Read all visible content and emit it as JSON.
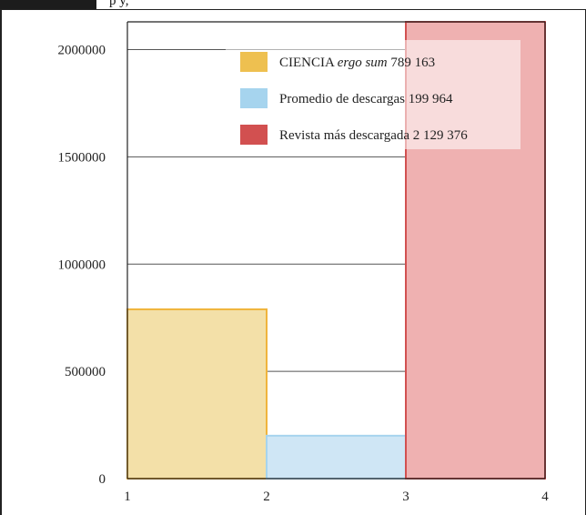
{
  "header": {
    "caption_fragment": "p                                                            y,"
  },
  "chart_data": {
    "type": "bar",
    "title": "",
    "xlabel": "",
    "ylabel": "",
    "x_ticks": [
      "1",
      "2",
      "3",
      "4"
    ],
    "y_ticks": [
      "0",
      "500000",
      "1000000",
      "1500000",
      "2000000"
    ],
    "ylim": [
      0,
      2129376
    ],
    "grid": true,
    "series": [
      {
        "name_prefix": "CIENCIA ",
        "name_italic": "ergo sum",
        "name_suffix": " 789 163",
        "value": 789163,
        "x_start": 1,
        "x_end": 2,
        "fill": "#f3e0a8",
        "stroke": "#f0b43c",
        "swatch": "#eec050"
      },
      {
        "name_prefix": "Promedio de descargas 199 964",
        "name_italic": "",
        "name_suffix": "",
        "value": 199964,
        "x_start": 2,
        "x_end": 3,
        "fill": "#cfe6f5",
        "stroke": "#a6d4ee",
        "swatch": "#a6d4ee"
      },
      {
        "name_prefix": "Revista más descargada 2 129 376",
        "name_italic": "",
        "name_suffix": "",
        "value": 2129376,
        "x_start": 3,
        "x_end": 4,
        "fill": "#efb1b1",
        "stroke": "#d25050",
        "swatch": "#d25050"
      }
    ],
    "legend_position": "top-right"
  }
}
